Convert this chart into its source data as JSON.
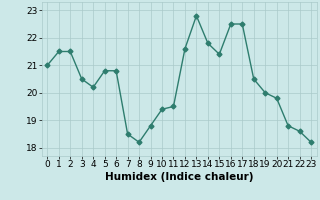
{
  "x": [
    0,
    1,
    2,
    3,
    4,
    5,
    6,
    7,
    8,
    9,
    10,
    11,
    12,
    13,
    14,
    15,
    16,
    17,
    18,
    19,
    20,
    21,
    22,
    23
  ],
  "y": [
    21.0,
    21.5,
    21.5,
    20.5,
    20.2,
    20.8,
    20.8,
    18.5,
    18.2,
    18.8,
    19.4,
    19.5,
    21.6,
    22.8,
    21.8,
    21.4,
    22.5,
    22.5,
    20.5,
    20.0,
    19.8,
    18.8,
    18.6,
    18.2
  ],
  "line_color": "#2e7d6e",
  "marker": "D",
  "marker_size": 2.5,
  "linewidth": 1.0,
  "bg_color": "#cce8e8",
  "grid_color": "#aacaca",
  "xlabel": "Humidex (Indice chaleur)",
  "xlabel_fontsize": 7.5,
  "tick_fontsize": 6.5,
  "ylim": [
    17.7,
    23.3
  ],
  "yticks": [
    18,
    19,
    20,
    21,
    22,
    23
  ],
  "xlim": [
    -0.5,
    23.5
  ],
  "xticks": [
    0,
    1,
    2,
    3,
    4,
    5,
    6,
    7,
    8,
    9,
    10,
    11,
    12,
    13,
    14,
    15,
    16,
    17,
    18,
    19,
    20,
    21,
    22,
    23
  ]
}
